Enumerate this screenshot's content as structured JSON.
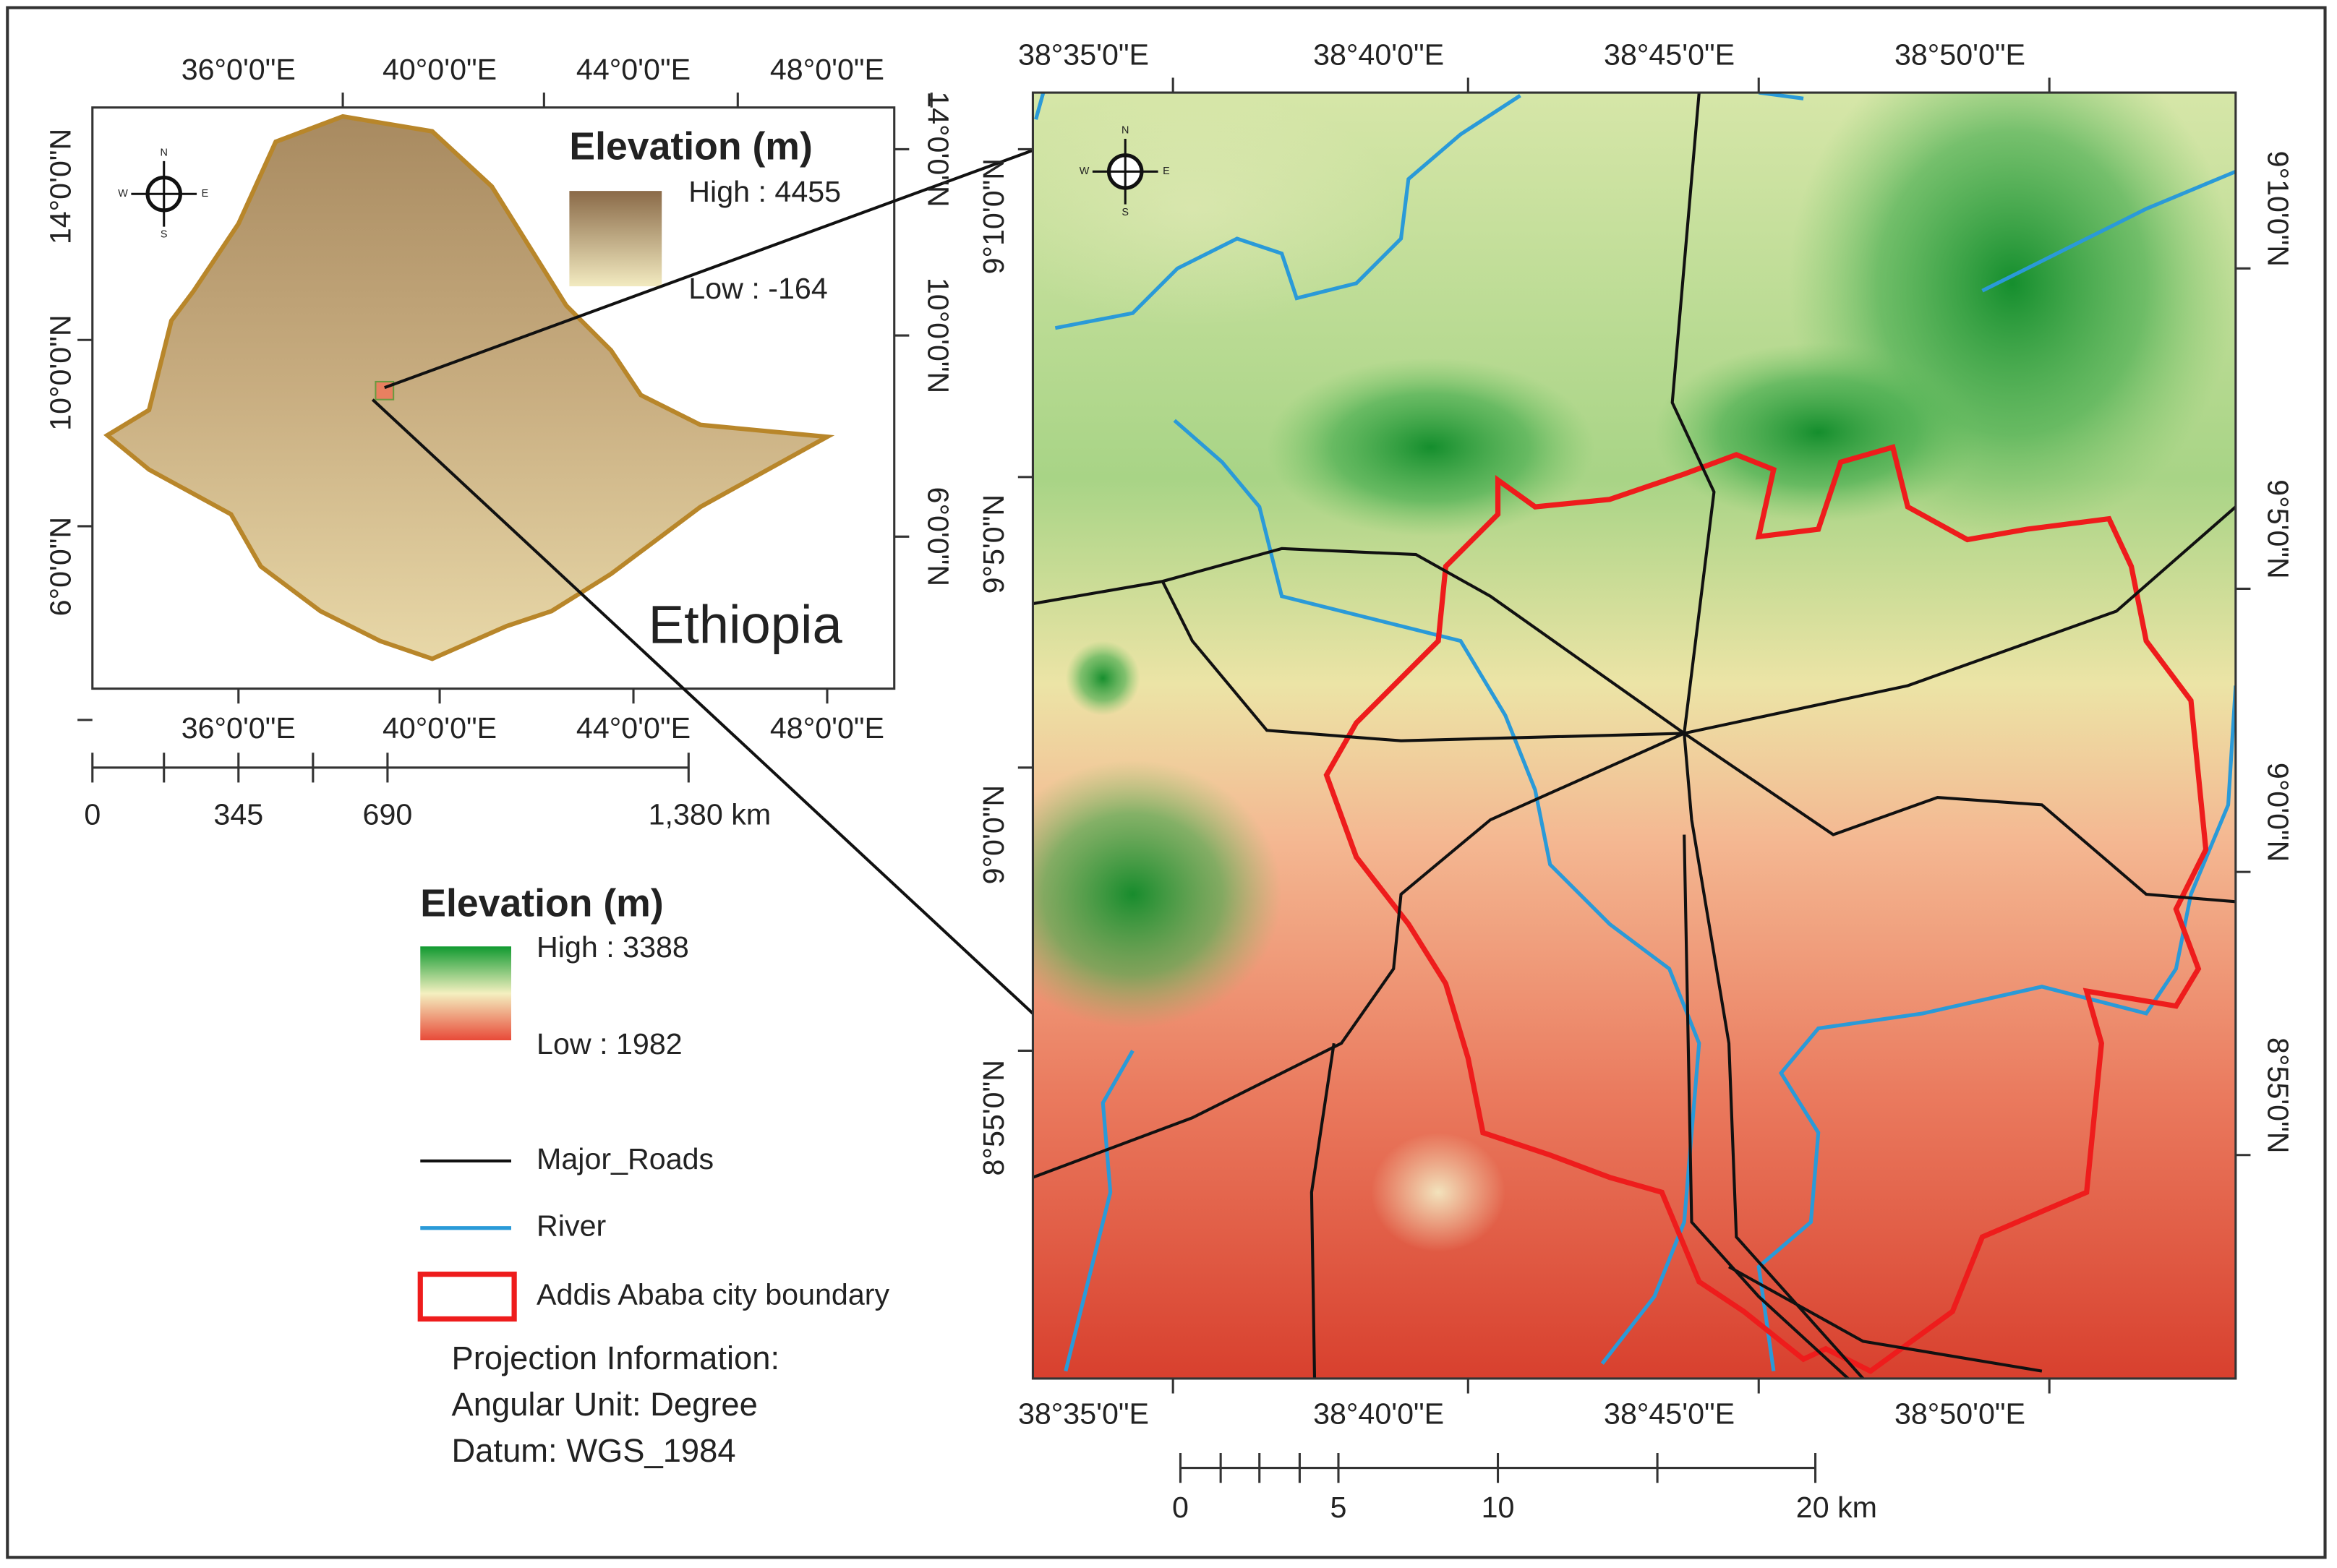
{
  "inset": {
    "lon_top": [
      "36°0'0\"E",
      "40°0'0\"E",
      "44°0'0\"E",
      "48°0'0\"E"
    ],
    "lon_bottom": [
      "36°0'0\"E",
      "40°0'0\"E",
      "44°0'0\"E",
      "48°0'0\"E"
    ],
    "lat_left": [
      "14°0'0\"N",
      "10°0'0\"N",
      "6°0'0\"N"
    ],
    "lat_right": [
      "14°0'0\"N",
      "10°0'0\"N",
      "6°0'0\"N"
    ],
    "compass": [
      "N",
      "E",
      "S",
      "W"
    ],
    "legend": {
      "title": "Elevation (m)",
      "high": "High : 4455",
      "low": "Low : -164"
    },
    "country": "Ethiopia",
    "scale": [
      "0",
      "345",
      "690",
      "1,380 km"
    ]
  },
  "main": {
    "lon_top": [
      "38°35'0\"E",
      "38°40'0\"E",
      "38°45'0\"E",
      "38°50'0\"E"
    ],
    "lon_bottom": [
      "38°35'0\"E",
      "38°40'0\"E",
      "38°45'0\"E",
      "38°50'0\"E"
    ],
    "lat_left": [
      "9°10'0\"N",
      "9°5'0\"N",
      "9°0'0\"N",
      "8°55'0\"N"
    ],
    "lat_right": [
      "9°10'0\"N",
      "9°5'0\"N",
      "9°0'0\"N",
      "8°55'0\"N"
    ],
    "compass": [
      "N",
      "E",
      "S",
      "W"
    ],
    "scale": [
      "0",
      "5",
      "10",
      "20 km"
    ]
  },
  "legend": {
    "title": "Elevation (m)",
    "high": "High : 3388",
    "low": "Low : 1982",
    "items": [
      "Major_Roads",
      "River",
      "Addis Ababa city boundary"
    ],
    "projection": [
      "Projection Information:",
      "Angular Unit: Degree",
      "Datum: WGS_1984"
    ]
  }
}
